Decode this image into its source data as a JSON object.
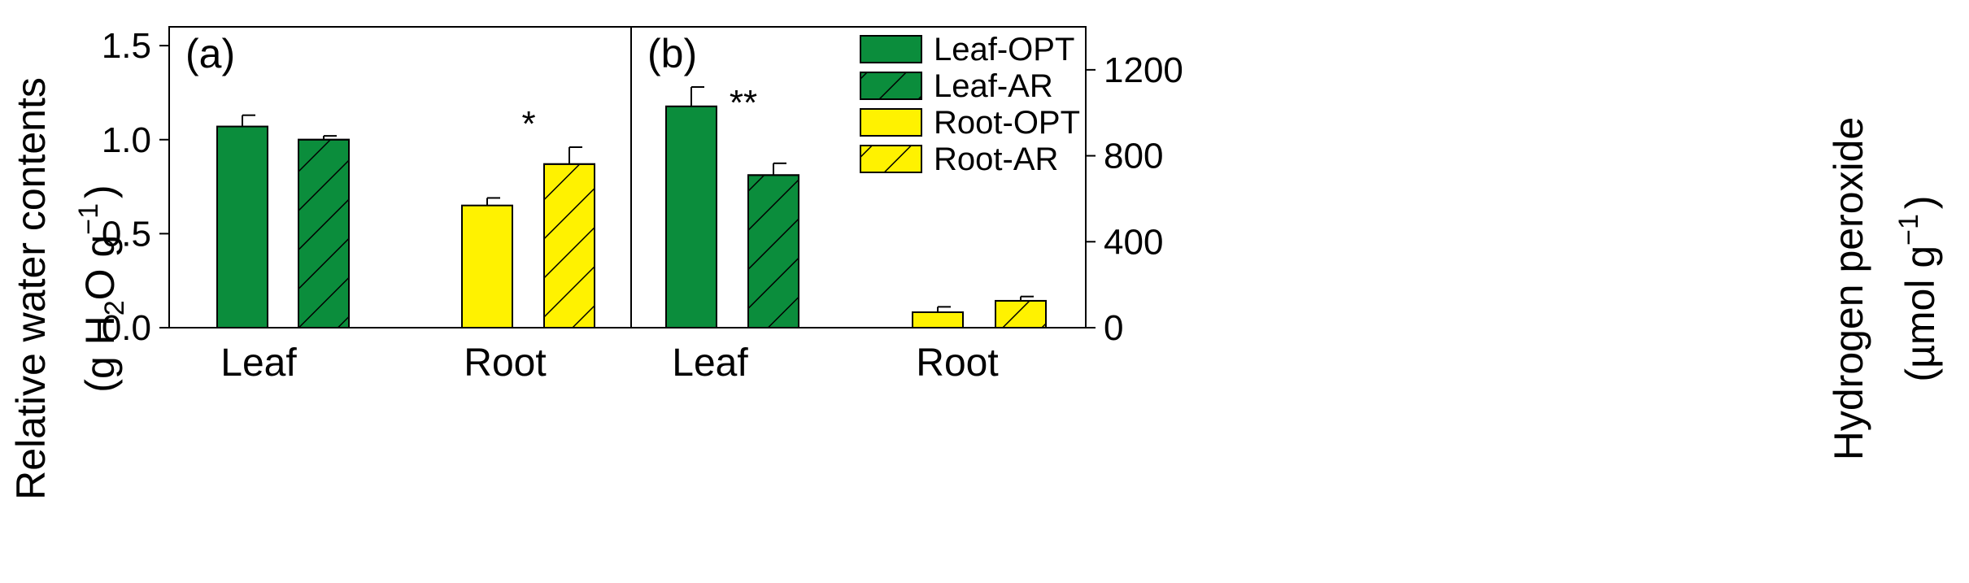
{
  "chart_data": [
    {
      "panel": "(a)",
      "type": "bar",
      "categories": [
        "Leaf",
        "Root"
      ],
      "series": [
        {
          "name": "Leaf-OPT",
          "key": "leaf_opt",
          "values": [
            1.07,
            null
          ],
          "errors": [
            0.06,
            null
          ]
        },
        {
          "name": "Leaf-AR",
          "key": "leaf_ar",
          "values": [
            1.0,
            null
          ],
          "errors": [
            0.02,
            null
          ]
        },
        {
          "name": "Root-OPT",
          "key": "root_opt",
          "values": [
            null,
            0.65
          ],
          "errors": [
            null,
            0.04
          ]
        },
        {
          "name": "Root-AR",
          "key": "root_ar",
          "values": [
            null,
            0.87
          ],
          "errors": [
            null,
            0.09
          ]
        }
      ],
      "significance": [
        {
          "category": "Root",
          "label": "*"
        }
      ],
      "ylim": [
        0,
        1.6
      ],
      "yticks": [
        0.0,
        0.5,
        1.0,
        1.5
      ],
      "ytick_labels": [
        "0.0",
        "0.5",
        "1.0",
        "1.5"
      ],
      "ylabel": {
        "line1": "Relative water contents",
        "line2_pre": "(g H",
        "line2_sub": "2",
        "line2_mid": "O g",
        "line2_sup": "−1",
        "line2_post": ")"
      },
      "y_axis_side": "left"
    },
    {
      "panel": "(b)",
      "type": "bar",
      "categories": [
        "Leaf",
        "Root"
      ],
      "series": [
        {
          "name": "Leaf-OPT",
          "key": "leaf_opt",
          "values": [
            1030,
            null
          ],
          "errors": [
            90,
            null
          ]
        },
        {
          "name": "Leaf-AR",
          "key": "leaf_ar",
          "values": [
            710,
            null
          ],
          "errors": [
            55,
            null
          ]
        },
        {
          "name": "Root-OPT",
          "key": "root_opt",
          "values": [
            null,
            72
          ],
          "errors": [
            null,
            25
          ]
        },
        {
          "name": "Root-AR",
          "key": "root_ar",
          "values": [
            null,
            125
          ],
          "errors": [
            null,
            20
          ]
        }
      ],
      "significance": [
        {
          "category": "Leaf",
          "label": "**"
        }
      ],
      "ylim": [
        0,
        1400
      ],
      "yticks": [
        0,
        400,
        800,
        1200
      ],
      "ytick_labels": [
        "0",
        "400",
        "800",
        "1200"
      ],
      "ylabel": {
        "line1": "Hydrogen peroxide",
        "line2_pre": "(µmol g",
        "line2_sup": "−1",
        "line2_post": ")"
      },
      "y_axis_side": "right",
      "legend": {
        "placement": "top-right",
        "entries": [
          {
            "label": "Leaf-OPT",
            "key": "leaf_opt"
          },
          {
            "label": "Leaf-AR",
            "key": "leaf_ar"
          },
          {
            "label": "Root-OPT",
            "key": "root_opt"
          },
          {
            "label": "Root-AR",
            "key": "root_ar"
          }
        ]
      }
    }
  ],
  "styles": {
    "leaf_opt": {
      "fill": "#0b8d3c",
      "hatch": false
    },
    "leaf_ar": {
      "fill": "#0b8d3c",
      "hatch": true
    },
    "root_opt": {
      "fill": "#fff200",
      "hatch": false
    },
    "root_ar": {
      "fill": "#fff200",
      "hatch": true
    }
  }
}
